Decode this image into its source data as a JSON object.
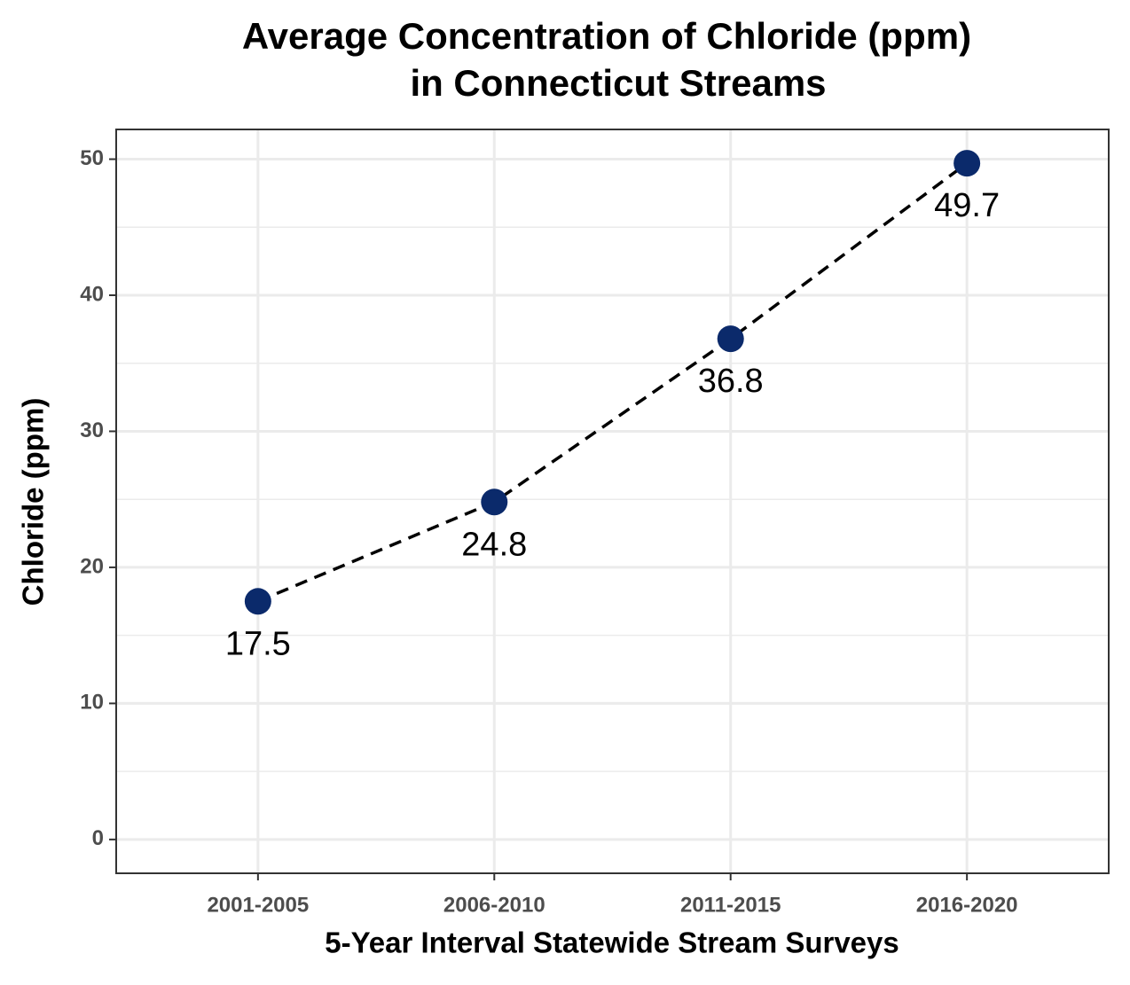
{
  "chart_data": {
    "type": "line",
    "title": [
      "Average Concentration of Chloride (ppm)",
      "in Connecticut Streams"
    ],
    "x_label": "5-Year Interval Statewide Stream Surveys",
    "y_label": "Chloride (ppm)",
    "categories": [
      "2001-2005",
      "2006-2010",
      "2011-2015",
      "2016-2020"
    ],
    "values": [
      17.5,
      24.8,
      36.8,
      49.7
    ],
    "color": "#0b2a6b",
    "line_color": "#000000",
    "line_style": "dashed",
    "ylim": [
      -2.485,
      52.185
    ],
    "yticks": [
      0,
      10,
      20,
      30,
      40,
      50
    ],
    "minor_yticks": [
      5,
      15,
      25,
      35,
      45
    ],
    "grid": true
  }
}
